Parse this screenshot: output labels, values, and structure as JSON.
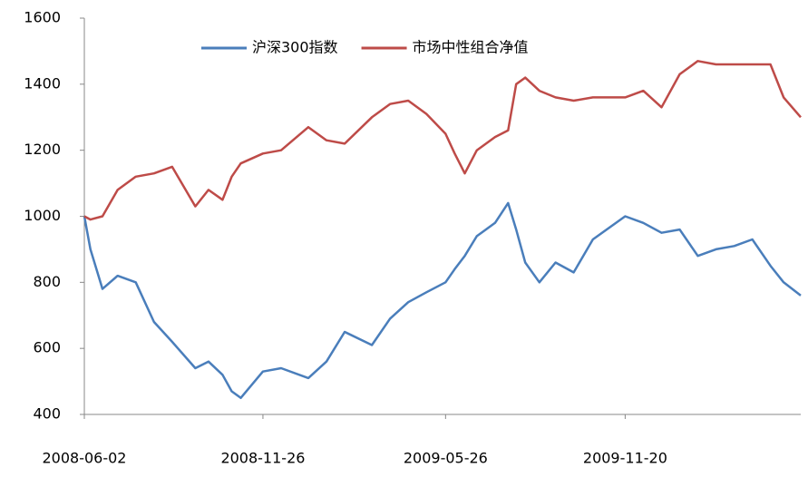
{
  "chart_data": {
    "type": "line",
    "x": [
      "2008-06-02",
      "2008-06-08",
      "2008-06-20",
      "2008-07-05",
      "2008-07-23",
      "2008-08-10",
      "2008-08-28",
      "2008-09-20",
      "2008-10-03",
      "2008-10-17",
      "2008-10-26",
      "2008-11-04",
      "2008-11-26",
      "2008-12-14",
      "2009-01-10",
      "2009-01-28",
      "2009-02-15",
      "2009-03-14",
      "2009-04-01",
      "2009-04-19",
      "2009-05-07",
      "2009-05-26",
      "2009-06-04",
      "2009-06-14",
      "2009-06-26",
      "2009-07-14",
      "2009-07-27",
      "2009-08-04",
      "2009-08-13",
      "2009-08-27",
      "2009-09-12",
      "2009-09-30",
      "2009-10-19",
      "2009-11-20",
      "2009-12-08",
      "2009-12-26",
      "2010-01-13",
      "2010-01-31",
      "2010-02-18",
      "2010-03-08",
      "2010-03-26",
      "2010-04-13",
      "2010-04-26",
      "2010-05-13"
    ],
    "series": [
      {
        "name": "沪深300指数",
        "color": "#4a7ebb",
        "values": [
          1000,
          900,
          780,
          820,
          800,
          680,
          620,
          540,
          560,
          520,
          470,
          450,
          530,
          540,
          510,
          560,
          650,
          610,
          690,
          740,
          770,
          800,
          840,
          880,
          940,
          980,
          1040,
          960,
          860,
          800,
          860,
          830,
          930,
          1000,
          980,
          950,
          960,
          880,
          900,
          910,
          930,
          850,
          800,
          760
        ]
      },
      {
        "name": "市场中性组合净值",
        "color": "#be4b48",
        "values": [
          1000,
          990,
          1000,
          1080,
          1120,
          1130,
          1150,
          1030,
          1080,
          1050,
          1120,
          1160,
          1190,
          1200,
          1270,
          1230,
          1220,
          1300,
          1340,
          1350,
          1310,
          1250,
          1190,
          1130,
          1200,
          1240,
          1260,
          1400,
          1420,
          1380,
          1360,
          1350,
          1360,
          1360,
          1380,
          1330,
          1430,
          1470,
          1460,
          1460,
          1460,
          1460,
          1360,
          1300
        ]
      }
    ],
    "xlim": [
      "2008-06-02",
      "2010-05-13"
    ],
    "xticks": [
      "2008-06-02",
      "2008-11-26",
      "2009-05-26",
      "2009-11-20"
    ],
    "ylim": [
      400,
      1600
    ],
    "yticks": [
      400,
      600,
      800,
      1000,
      1200,
      1400,
      1600
    ],
    "legend": "top"
  }
}
